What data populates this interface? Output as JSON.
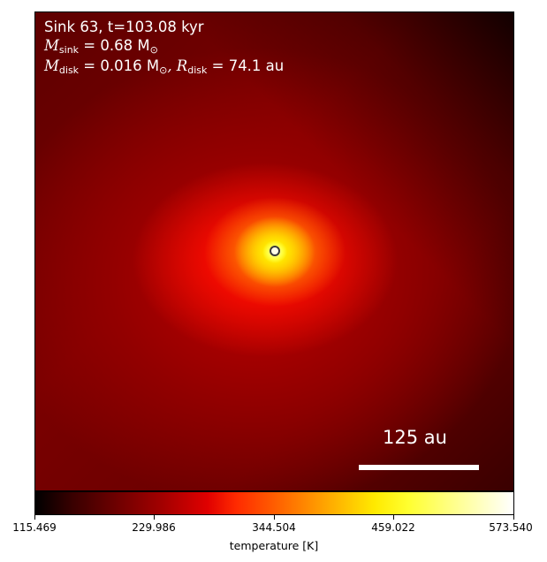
{
  "annotation": {
    "line1": "Sink 63, t=103.08 kyr",
    "sink_mass_symbol": "M",
    "sink_mass_sub": "sink",
    "sink_mass_value": " = 0.68 M",
    "sink_mass_unit_sub": "⊙",
    "disk_mass_symbol": "M",
    "disk_mass_sub": "disk",
    "disk_mass_value": " = 0.016 M",
    "disk_mass_unit_sub": "⊙",
    "disk_radius_symbol": ", R",
    "disk_radius_sub": "disk",
    "disk_radius_value": " = 74.1 au"
  },
  "scale_bar": {
    "label": "125 au"
  },
  "colorbar": {
    "ticks": [
      "115.469",
      "229.986",
      "344.504",
      "459.022",
      "573.540"
    ],
    "label": "temperature [K]",
    "range": [
      115.469,
      573.54
    ],
    "colormap": "hot"
  }
}
